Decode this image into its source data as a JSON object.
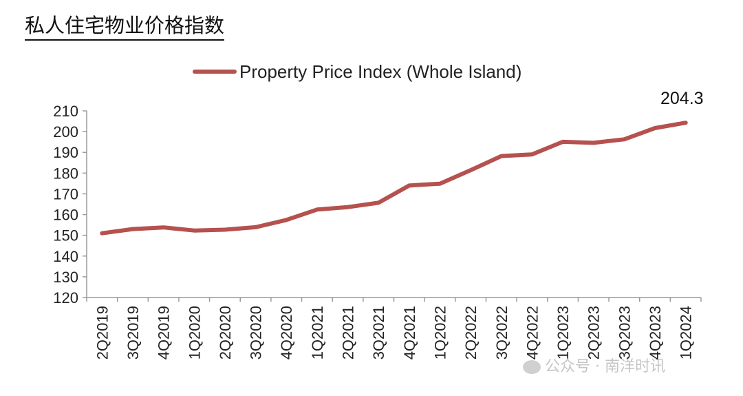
{
  "page_title": "私人住宅物业价格指数",
  "watermark": "公众号 · 南洋时讯",
  "chart_data": {
    "type": "line",
    "title": "私人住宅物业价格指数",
    "categories": [
      "2Q2019",
      "3Q2019",
      "4Q2019",
      "1Q2020",
      "2Q2020",
      "3Q2020",
      "4Q2020",
      "1Q2021",
      "2Q2021",
      "3Q2021",
      "4Q2021",
      "1Q2022",
      "2Q2022",
      "3Q2022",
      "4Q2022",
      "1Q2023",
      "2Q2023",
      "3Q2023",
      "4Q2023",
      "1Q2024"
    ],
    "series": [
      {
        "name": "Property Price Index (Whole Island)",
        "color": "#b5514e",
        "values": [
          151.0,
          153.0,
          153.8,
          152.3,
          152.7,
          153.9,
          157.4,
          162.4,
          163.6,
          165.7,
          174.0,
          174.9,
          181.4,
          188.2,
          189.0,
          195.1,
          194.6,
          196.3,
          201.7,
          204.3
        ]
      }
    ],
    "ylim": [
      120,
      210
    ],
    "yticks": [
      "120",
      "130",
      "140",
      "150",
      "160",
      "170",
      "180",
      "190",
      "200",
      "210"
    ],
    "xlabel": "",
    "ylabel": "",
    "end_label": "204.3",
    "legend_position": "top-center",
    "grid": false
  }
}
